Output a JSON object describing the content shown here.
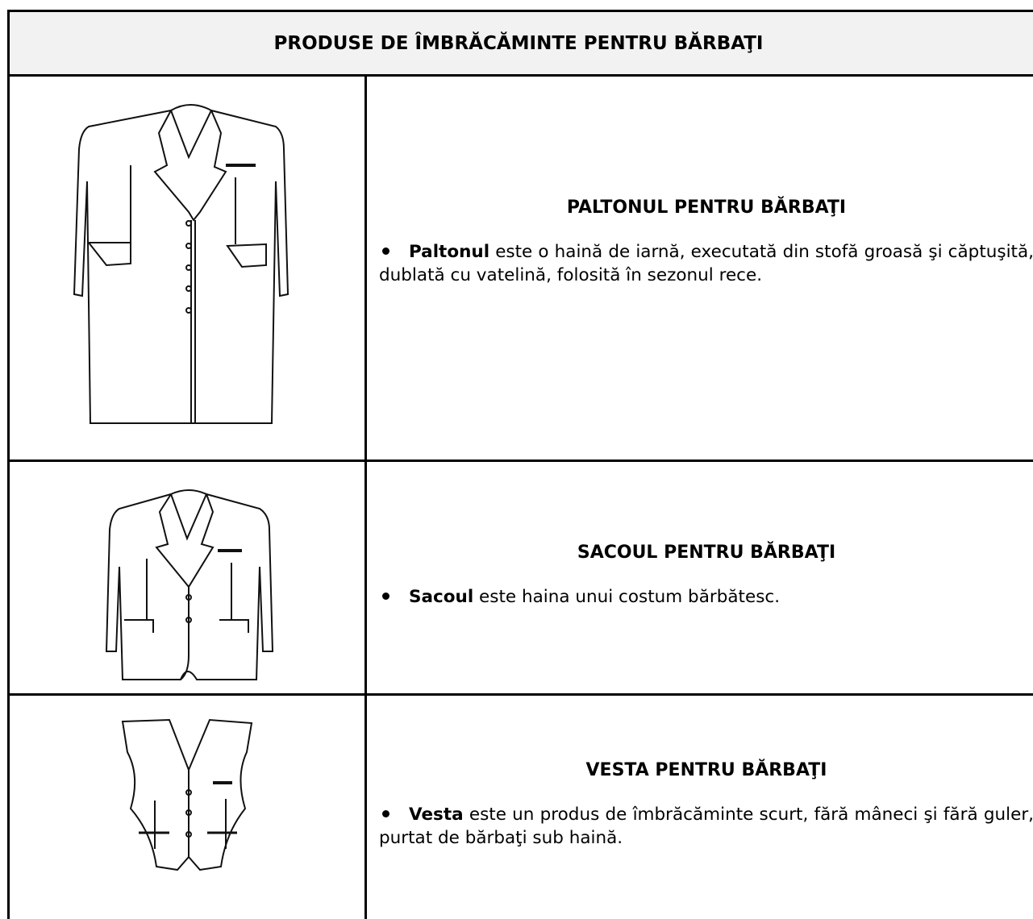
{
  "table": {
    "title": "PRODUSE DE ÎMBRĂCĂMINTE PENTRU BĂRBAŢI",
    "rows": [
      {
        "heading": "PALTONUL PENTRU BĂRBAŢI",
        "term": "Paltonul",
        "text": "este o haină de iarnă, executată din stofă groasă şi căptuşită, dublată cu vatelină, folosită în sezonul rece."
      },
      {
        "heading": "SACOUL PENTRU BĂRBAŢI",
        "term": "Sacoul",
        "text": "este haina unui costum bărbătesc."
      },
      {
        "heading": "VESTA PENTRU BĂRBAŢI",
        "term": "Vesta",
        "text": "este un produs de îmbrăcăminte scurt, fără mâneci şi fără guler, purtat de bărbaţi sub haină."
      }
    ]
  }
}
